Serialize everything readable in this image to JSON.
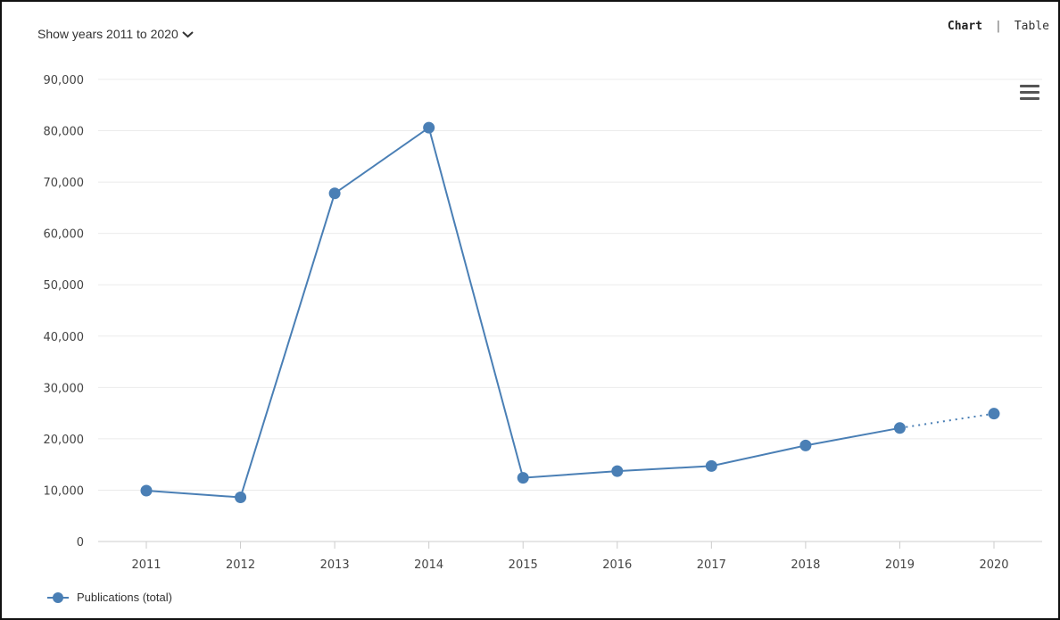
{
  "controls": {
    "year_range_label": "Show years 2011 to 2020",
    "view_chart_label": "Chart",
    "view_separator": "|",
    "view_table_label": "Table"
  },
  "colors": {
    "series": "#4a7fb5",
    "gridline": "#ebebeb",
    "axis": "#cccccc"
  },
  "icons": {
    "year_dropdown": "chevron-down-icon",
    "export_menu": "hamburger-menu-icon",
    "legend_marker": "circle-marker-icon"
  },
  "chart_data": {
    "type": "line",
    "x": [
      "2011",
      "2012",
      "2013",
      "2014",
      "2015",
      "2016",
      "2017",
      "2018",
      "2019",
      "2020"
    ],
    "series": [
      {
        "name": "Publications (total)",
        "values": [
          9900,
          8600,
          67800,
          80600,
          12400,
          13700,
          14700,
          18700,
          22100,
          24900
        ],
        "dashed_from_index": 8
      }
    ],
    "ylim": [
      0,
      90000
    ],
    "yticks": [
      0,
      10000,
      20000,
      30000,
      40000,
      50000,
      60000,
      70000,
      80000,
      90000
    ],
    "ytick_labels": [
      "0",
      "10,000",
      "20,000",
      "30,000",
      "40,000",
      "50,000",
      "60,000",
      "70,000",
      "80,000",
      "90,000"
    ],
    "grid": true,
    "legend_position": "bottom-left",
    "title": "",
    "xlabel": "",
    "ylabel": ""
  }
}
